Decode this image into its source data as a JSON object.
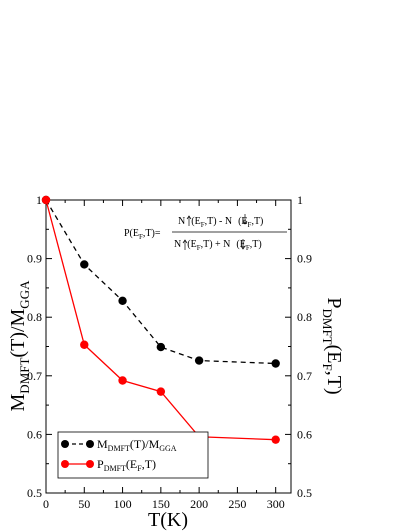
{
  "chart_data": {
    "type": "line",
    "x": [
      0,
      50,
      100,
      150,
      200,
      300
    ],
    "xlabel": "T(K)",
    "xlim": [
      0,
      320
    ],
    "xticks": [
      "0",
      "50",
      "100",
      "150",
      "200",
      "250",
      "300"
    ],
    "ylim": [
      0.5,
      1.0
    ],
    "yticks_left": [
      "0.5",
      "0.6",
      "0.7",
      "0.8",
      "0.9",
      "1"
    ],
    "yticks_right": [
      "0.5",
      "0.6",
      "0.7",
      "0.8",
      "0.9",
      "1"
    ],
    "ylabel_left": {
      "main": "M",
      "sub1": "DMFT",
      "mid": "(T)/M",
      "sub2": "GGA"
    },
    "ylabel_right": {
      "main": "P",
      "sub": "DMFT",
      "mid": "(E",
      "sub2": "F",
      "end": ",T)"
    },
    "grid": false,
    "legend_position": "bottom-left",
    "series": [
      {
        "id": "M",
        "color": "#000000",
        "style": "dashed",
        "values": [
          1.0,
          0.89,
          0.828,
          0.749,
          0.726,
          0.721
        ],
        "legend": {
          "main": "M",
          "sub1": "DMFT",
          "mid": "(T)/M",
          "sub2": "GGA"
        }
      },
      {
        "id": "P",
        "color": "#ff0000",
        "style": "solid",
        "values": [
          1.0,
          0.753,
          0.692,
          0.673,
          0.596,
          0.591
        ],
        "legend": {
          "main": "P",
          "sub1": "DMFT",
          "mid": "(E",
          "sub2": "F",
          "end": ",T)"
        }
      }
    ],
    "annotation": {
      "lhs": "P(E",
      "lhs_sub": "F",
      "lhs_end": ",T)=",
      "numerator": {
        "a": "N",
        "a_mid": "(E",
        "a_sub": "F",
        "a_end": ",T) - N",
        "b_mid": "(E",
        "b_sub": "F",
        "b_end": ",T)"
      },
      "denominator": {
        "a": "N",
        "a_mid": "(E",
        "a_sub": "F",
        "a_end": ",T) + N",
        "b_mid": "(E",
        "b_sub": "F",
        "b_end": ",T)"
      }
    }
  }
}
